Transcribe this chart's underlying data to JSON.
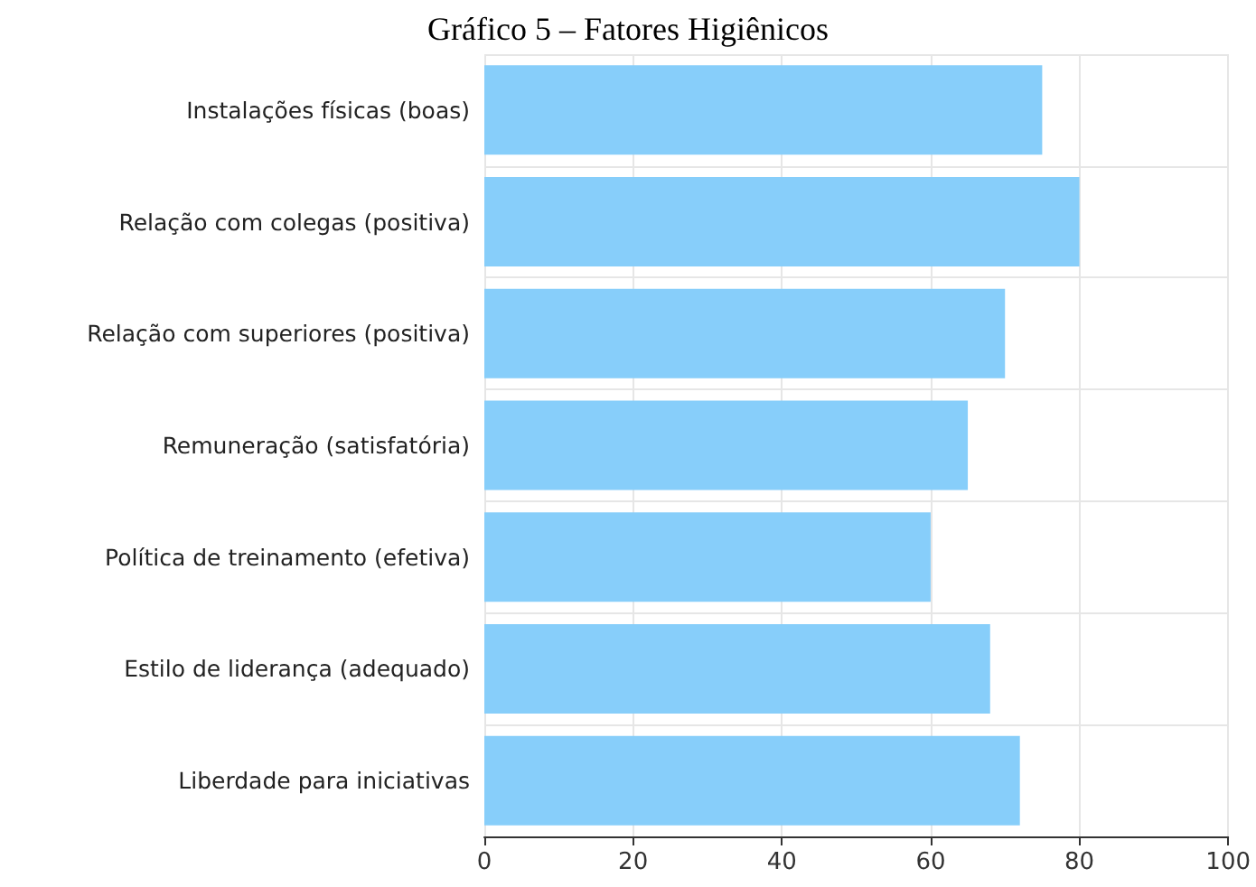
{
  "chart_data": {
    "type": "bar",
    "orientation": "horizontal",
    "title": "Gráfico 5 – Fatores Higiênicos",
    "categories": [
      "Instalações físicas (boas)",
      "Relação com colegas (positiva)",
      "Relação com superiores (positiva)",
      "Remuneração (satisfatória)",
      "Política de treinamento (efetiva)",
      "Estilo de liderança (adequado)",
      "Liberdade para iniciativas"
    ],
    "values": [
      75,
      80,
      70,
      65,
      60,
      68,
      72
    ],
    "color": "#87cefa",
    "xlim": [
      0,
      100
    ],
    "xticks": [
      0,
      20,
      40,
      60,
      80,
      100
    ],
    "grid": true
  }
}
